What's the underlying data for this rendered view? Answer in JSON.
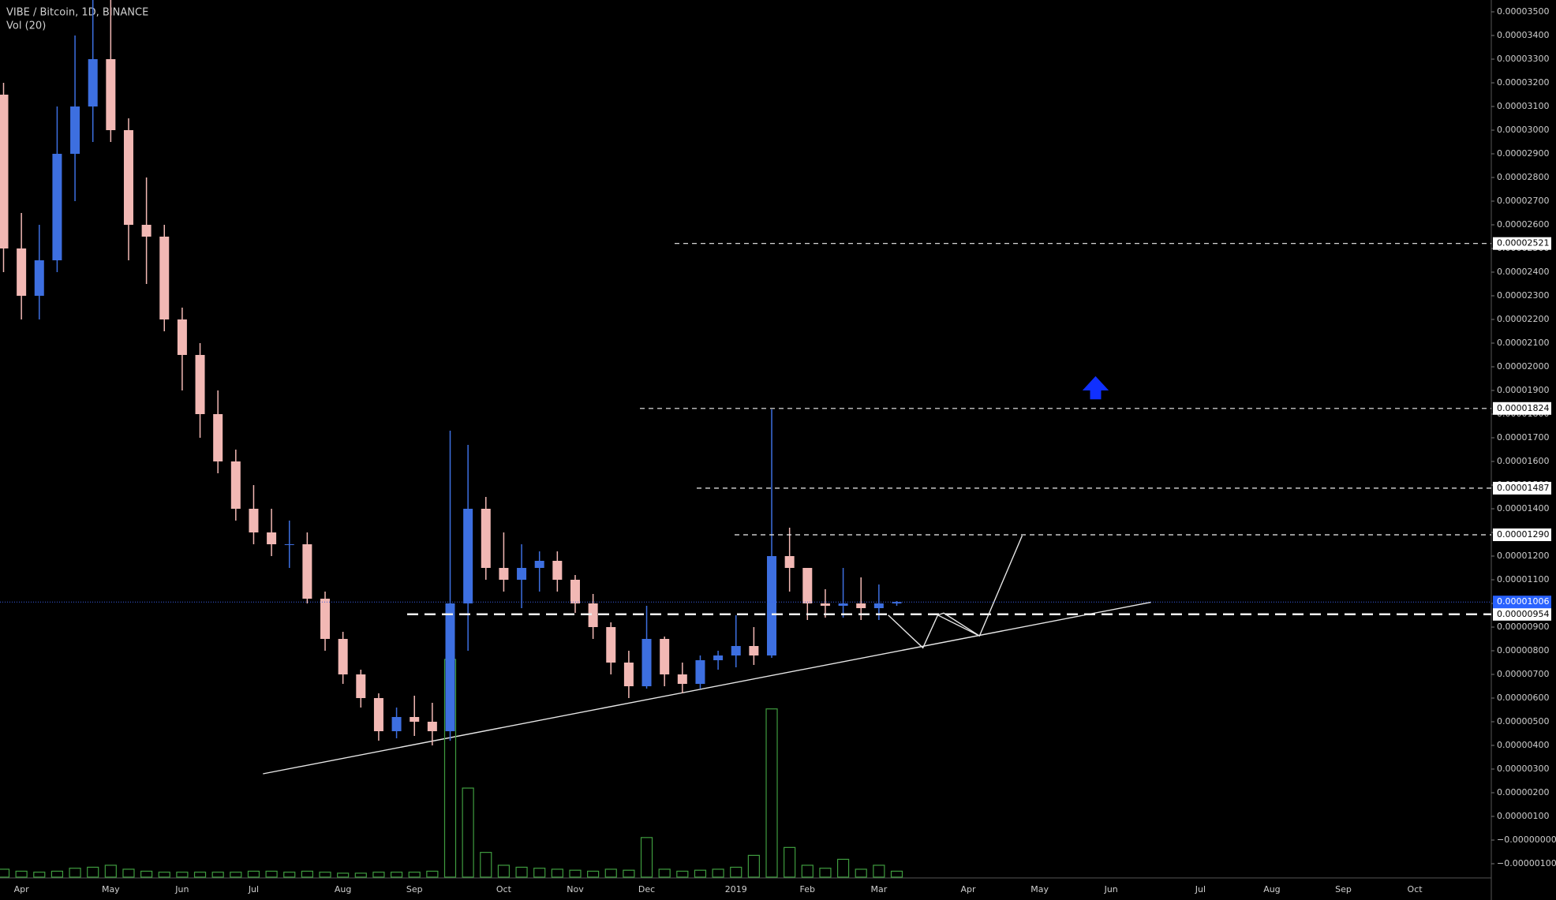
{
  "chart_data": {
    "type": "candlestick",
    "title": "VIBE / Bitcoin, 1D, BINANCE",
    "indicator": "Vol (20)",
    "categories": [
      null,
      "Apr",
      null,
      null,
      null,
      null,
      "May",
      null,
      null,
      null,
      "Jun",
      null,
      null,
      null,
      "Jul",
      null,
      null,
      null,
      null,
      "Aug",
      null,
      null,
      null,
      "Sep",
      null,
      null,
      null,
      null,
      "Oct",
      null,
      null,
      null,
      "Nov",
      null,
      null,
      null,
      "Dec",
      null,
      null,
      null,
      null,
      "2019",
      null,
      null,
      null,
      "Feb",
      null,
      null,
      null,
      "Mar",
      null,
      null,
      null,
      null,
      "Apr",
      null,
      null,
      null,
      "May",
      null,
      null,
      null,
      "Jun",
      null,
      null,
      null,
      null,
      "Jul",
      null,
      null,
      null,
      "Aug",
      null,
      null,
      null,
      "Sep",
      null,
      null,
      null,
      "Oct",
      null,
      null
    ],
    "open": [
      3.15e-05,
      2.5e-05,
      2.3e-05,
      2.45e-05,
      2.9e-05,
      3.1e-05,
      3.3e-05,
      3e-05,
      2.6e-05,
      2.55e-05,
      2.2e-05,
      2.05e-05,
      1.8e-05,
      1.6e-05,
      1.4e-05,
      1.3e-05,
      1.25e-05,
      1.25e-05,
      1.02e-05,
      8.5e-06,
      7e-06,
      6e-06,
      4.6e-06,
      5.2e-06,
      5e-06,
      4.6e-06,
      1e-05,
      1.4e-05,
      1.15e-05,
      1.1e-05,
      1.15e-05,
      1.18e-05,
      1.1e-05,
      1e-05,
      9e-06,
      7.5e-06,
      6.5e-06,
      8.5e-06,
      7e-06,
      6.6e-06,
      7.6e-06,
      7.8e-06,
      8.2e-06,
      7.8e-06,
      1.2e-05,
      1.15e-05,
      1e-05,
      9.9e-06,
      1e-05,
      9.8e-06,
      1e-05,
      null,
      null,
      null,
      null,
      null,
      null,
      null,
      null,
      null,
      null,
      null,
      null,
      null,
      null,
      null,
      null,
      null,
      null,
      null,
      null,
      null,
      null,
      null,
      null,
      null,
      null,
      null,
      null,
      null,
      null,
      null
    ],
    "high": [
      3.2e-05,
      2.65e-05,
      2.6e-05,
      3.1e-05,
      3.4e-05,
      3.55e-05,
      3.55e-05,
      3.05e-05,
      2.8e-05,
      2.6e-05,
      2.25e-05,
      2.1e-05,
      1.9e-05,
      1.65e-05,
      1.5e-05,
      1.4e-05,
      1.35e-05,
      1.3e-05,
      1.05e-05,
      8.8e-06,
      7.2e-06,
      6.2e-06,
      5.6e-06,
      6.1e-06,
      5.8e-06,
      1.73e-05,
      1.67e-05,
      1.45e-05,
      1.3e-05,
      1.25e-05,
      1.22e-05,
      1.22e-05,
      1.12e-05,
      1.04e-05,
      9.2e-06,
      8e-06,
      9.9e-06,
      8.6e-06,
      7.5e-06,
      7.8e-06,
      8e-06,
      9.5e-06,
      9e-06,
      1.82e-05,
      1.32e-05,
      1.15e-05,
      1.06e-05,
      1.15e-05,
      1.11e-05,
      1.08e-05,
      1.01e-05,
      null,
      null,
      null,
      null,
      null,
      null,
      null,
      null,
      null,
      null,
      null,
      null,
      null,
      null,
      null,
      null,
      null,
      null,
      null,
      null,
      null,
      null,
      null,
      null,
      null,
      null,
      null,
      null,
      null,
      null,
      null
    ],
    "low": [
      2.4e-05,
      2.2e-05,
      2.2e-05,
      2.4e-05,
      2.7e-05,
      2.95e-05,
      2.95e-05,
      2.45e-05,
      2.35e-05,
      2.15e-05,
      1.9e-05,
      1.7e-05,
      1.55e-05,
      1.35e-05,
      1.25e-05,
      1.2e-05,
      1.15e-05,
      1e-05,
      8e-06,
      6.6e-06,
      5.6e-06,
      4.2e-06,
      4.3e-06,
      4.4e-06,
      4e-06,
      4.2e-06,
      8e-06,
      1.1e-05,
      1.05e-05,
      9.8e-06,
      1.05e-05,
      1.05e-05,
      9.6e-06,
      8.5e-06,
      7e-06,
      6e-06,
      6.4e-06,
      6.5e-06,
      6.2e-06,
      6.4e-06,
      7.2e-06,
      7.3e-06,
      7.4e-06,
      7.7e-06,
      1.05e-05,
      9.3e-06,
      9.4e-06,
      9.4e-06,
      9.3e-06,
      9.3e-06,
      9.9e-06,
      null,
      null,
      null,
      null,
      null,
      null,
      null,
      null,
      null,
      null,
      null,
      null,
      null,
      null,
      null,
      null,
      null,
      null,
      null,
      null,
      null,
      null,
      null,
      null,
      null,
      null,
      null,
      null,
      null,
      null,
      null
    ],
    "close": [
      2.5e-05,
      2.3e-05,
      2.45e-05,
      2.9e-05,
      3.1e-05,
      3.3e-05,
      3e-05,
      2.6e-05,
      2.55e-05,
      2.2e-05,
      2.05e-05,
      1.8e-05,
      1.6e-05,
      1.4e-05,
      1.3e-05,
      1.25e-05,
      1.25e-05,
      1.02e-05,
      8.5e-06,
      7e-06,
      6e-06,
      4.6e-06,
      5.2e-06,
      5e-06,
      4.6e-06,
      1e-05,
      1.4e-05,
      1.15e-05,
      1.1e-05,
      1.15e-05,
      1.18e-05,
      1.1e-05,
      1e-05,
      9e-06,
      7.5e-06,
      6.5e-06,
      8.5e-06,
      7e-06,
      6.6e-06,
      7.6e-06,
      7.8e-06,
      8.2e-06,
      7.8e-06,
      1.2e-05,
      1.15e-05,
      1e-05,
      9.9e-06,
      1e-05,
      9.8e-06,
      1e-05,
      1.006e-05,
      null,
      null,
      null,
      null,
      null,
      null,
      null,
      null,
      null,
      null,
      null,
      null,
      null,
      null,
      null,
      null,
      null,
      null,
      null,
      null,
      null,
      null,
      null,
      null,
      null,
      null,
      null,
      null,
      null,
      null,
      null
    ],
    "volume": [
      8,
      6,
      5,
      6,
      9,
      10,
      12,
      8,
      6,
      5,
      5,
      5,
      5,
      5,
      6,
      6,
      5,
      6,
      5,
      4,
      4,
      5,
      5,
      5,
      6,
      220,
      90,
      25,
      12,
      10,
      9,
      8,
      7,
      6,
      8,
      7,
      40,
      8,
      6,
      7,
      8,
      10,
      22,
      170,
      30,
      12,
      9,
      18,
      8,
      12,
      6,
      null,
      null,
      null,
      null,
      null,
      null,
      null,
      null,
      null,
      null,
      null,
      null,
      null,
      null,
      null,
      null,
      null,
      null,
      null,
      null,
      null,
      null,
      null,
      null,
      null,
      null,
      null,
      null,
      null,
      null,
      null
    ],
    "up_color": "#3d6fe0",
    "down_color": "#f2b8b4",
    "volume_color": "#3f9c3f",
    "ylim": [
      -1.6e-06,
      3.55e-05
    ],
    "yticks": [
      {
        "value": 3.5e-05,
        "label": "0.00003500"
      },
      {
        "value": 3.4e-05,
        "label": "0.00003400"
      },
      {
        "value": 3.3e-05,
        "label": "0.00003300"
      },
      {
        "value": 3.2e-05,
        "label": "0.00003200"
      },
      {
        "value": 3.1e-05,
        "label": "0.00003100"
      },
      {
        "value": 3e-05,
        "label": "0.00003000"
      },
      {
        "value": 2.9e-05,
        "label": "0.00002900"
      },
      {
        "value": 2.8e-05,
        "label": "0.00002800"
      },
      {
        "value": 2.7e-05,
        "label": "0.00002700"
      },
      {
        "value": 2.6e-05,
        "label": "0.00002600"
      },
      {
        "value": 2.5e-05,
        "label": "0.00002500"
      },
      {
        "value": 2.4e-05,
        "label": "0.00002400"
      },
      {
        "value": 2.3e-05,
        "label": "0.00002300"
      },
      {
        "value": 2.2e-05,
        "label": "0.00002200"
      },
      {
        "value": 2.1e-05,
        "label": "0.00002100"
      },
      {
        "value": 2e-05,
        "label": "0.00002000"
      },
      {
        "value": 1.9e-05,
        "label": "0.00001900"
      },
      {
        "value": 1.8e-05,
        "label": "0.00001800"
      },
      {
        "value": 1.7e-05,
        "label": "0.00001700"
      },
      {
        "value": 1.6e-05,
        "label": "0.00001600"
      },
      {
        "value": 1.5e-05,
        "label": "0.00001500"
      },
      {
        "value": 1.4e-05,
        "label": "0.00001400"
      },
      {
        "value": 1.3e-05,
        "label": "0.00001300"
      },
      {
        "value": 1.2e-05,
        "label": "0.00001200"
      },
      {
        "value": 1.1e-05,
        "label": "0.00001100"
      },
      {
        "value": 1e-05,
        "label": "0.00001000"
      },
      {
        "value": 9e-06,
        "label": "0.00000900"
      },
      {
        "value": 8e-06,
        "label": "0.00000800"
      },
      {
        "value": 7e-06,
        "label": "0.00000700"
      },
      {
        "value": 6e-06,
        "label": "0.00000600"
      },
      {
        "value": 5e-06,
        "label": "0.00000500"
      },
      {
        "value": 4e-06,
        "label": "0.00000400"
      },
      {
        "value": 3e-06,
        "label": "0.00000300"
      },
      {
        "value": 2e-06,
        "label": "0.00000200"
      },
      {
        "value": 1e-06,
        "label": "0.00000100"
      },
      {
        "value": 0,
        "label": "−0.00000000"
      },
      {
        "value": -1e-06,
        "label": "−0.00000100"
      }
    ],
    "levels": [
      {
        "value": 2.521e-05,
        "label": "0.00002521"
      },
      {
        "value": 1.824e-05,
        "label": "0.00001824"
      },
      {
        "value": 1.487e-05,
        "label": "0.00001487"
      },
      {
        "value": 1.29e-05,
        "label": "0.00001290"
      },
      {
        "value": 9.54e-06,
        "label": "0.00000954"
      }
    ],
    "last_price": {
      "value": 1.006e-05,
      "label": "0.00001006"
    }
  }
}
